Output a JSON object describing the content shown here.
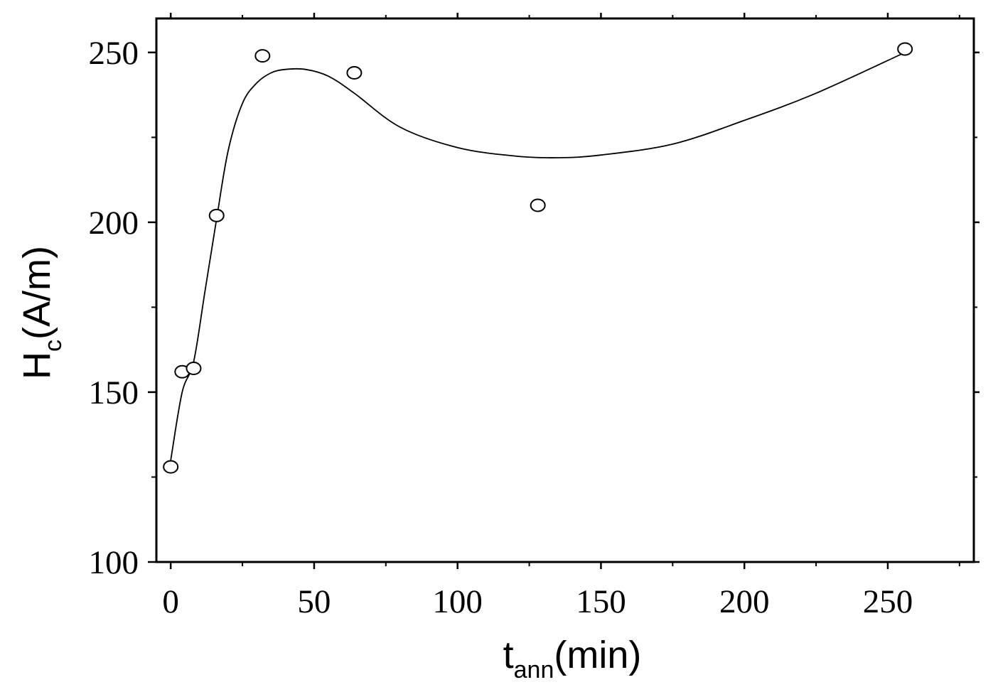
{
  "chart_data": {
    "type": "scatter",
    "xlabel": {
      "main": "t",
      "sub": "ann",
      "rest": "(min)"
    },
    "ylabel": {
      "main": "H",
      "sub": "c",
      "rest": "(A/m)"
    },
    "xlim": [
      -5,
      280
    ],
    "ylim": [
      100,
      260
    ],
    "x_ticks": [
      0,
      50,
      100,
      150,
      200,
      250
    ],
    "x_tick_labels": [
      "0",
      "50",
      "100",
      "150",
      "200",
      "250"
    ],
    "x_minor_ticks": [
      25,
      75,
      125,
      175,
      225,
      275
    ],
    "y_ticks": [
      100,
      150,
      200,
      250
    ],
    "y_tick_labels": [
      "100",
      "150",
      "200",
      "250"
    ],
    "y_minor_ticks": [
      125,
      175,
      225
    ],
    "series": [
      {
        "marker": "open-circle",
        "x": [
          0,
          4,
          8,
          16,
          32,
          64,
          128,
          256
        ],
        "y": [
          128,
          156,
          157,
          202,
          249,
          244,
          205,
          251
        ]
      }
    ],
    "fit_curve": {
      "x": [
        0,
        4,
        8,
        12,
        16,
        20,
        25,
        30,
        35,
        40,
        47,
        55,
        64,
        80,
        100,
        120,
        135,
        150,
        175,
        200,
        225,
        256
      ],
      "y": [
        130,
        150,
        159,
        180,
        201,
        221,
        235,
        241,
        244,
        245,
        245,
        243,
        238,
        228,
        222,
        219.5,
        219,
        219.8,
        223,
        230,
        238,
        250
      ]
    },
    "grid": false,
    "legend": "none"
  }
}
